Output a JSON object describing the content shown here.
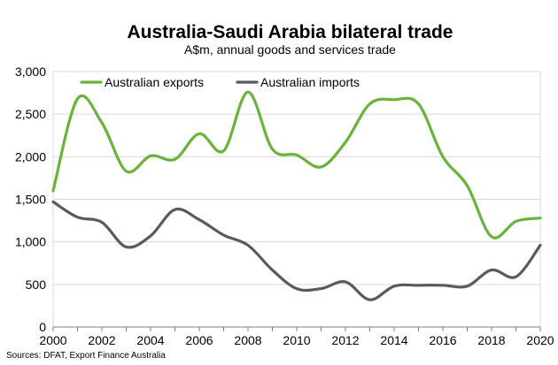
{
  "colors": {
    "exports": "#6ab23a",
    "imports": "#595a61",
    "grid": "#d9d9d9",
    "axis": "#7f7f7f"
  },
  "source": "Sources: DFAT, Export Finance Australia",
  "chart_data": {
    "type": "line",
    "title": "Australia-Saudi Arabia bilateral trade",
    "subtitle": "A$m, annual goods and services trade",
    "xlabel": "",
    "ylabel": "",
    "x": [
      2000,
      2001,
      2002,
      2003,
      2004,
      2005,
      2006,
      2007,
      2008,
      2009,
      2010,
      2011,
      2012,
      2013,
      2014,
      2015,
      2016,
      2017,
      2018,
      2019,
      2020
    ],
    "xlim": [
      2000,
      2020
    ],
    "ylim": [
      0,
      3000
    ],
    "x_ticks": [
      "2000",
      "2002",
      "2004",
      "2006",
      "2008",
      "2010",
      "2012",
      "2014",
      "2016",
      "2018",
      "2020"
    ],
    "x_tick_values": [
      2000,
      2002,
      2004,
      2006,
      2008,
      2010,
      2012,
      2014,
      2016,
      2018,
      2020
    ],
    "y_ticks": [
      "0",
      "500",
      "1,000",
      "1,500",
      "2,000",
      "2,500",
      "3,000"
    ],
    "y_tick_values": [
      0,
      500,
      1000,
      1500,
      2000,
      2500,
      3000
    ],
    "grid": true,
    "legend_position": "top-left",
    "series": [
      {
        "name": "Australian exports",
        "color": "#6ab23a",
        "values": [
          1600,
          2680,
          2400,
          1830,
          2010,
          1970,
          2270,
          2070,
          2760,
          2090,
          2020,
          1880,
          2170,
          2620,
          2670,
          2620,
          2000,
          1660,
          1060,
          1240,
          1280
        ]
      },
      {
        "name": "Australian imports",
        "color": "#595a61",
        "values": [
          1470,
          1290,
          1230,
          940,
          1070,
          1380,
          1260,
          1080,
          960,
          670,
          450,
          450,
          530,
          320,
          480,
          490,
          490,
          480,
          670,
          590,
          960
        ]
      }
    ]
  }
}
